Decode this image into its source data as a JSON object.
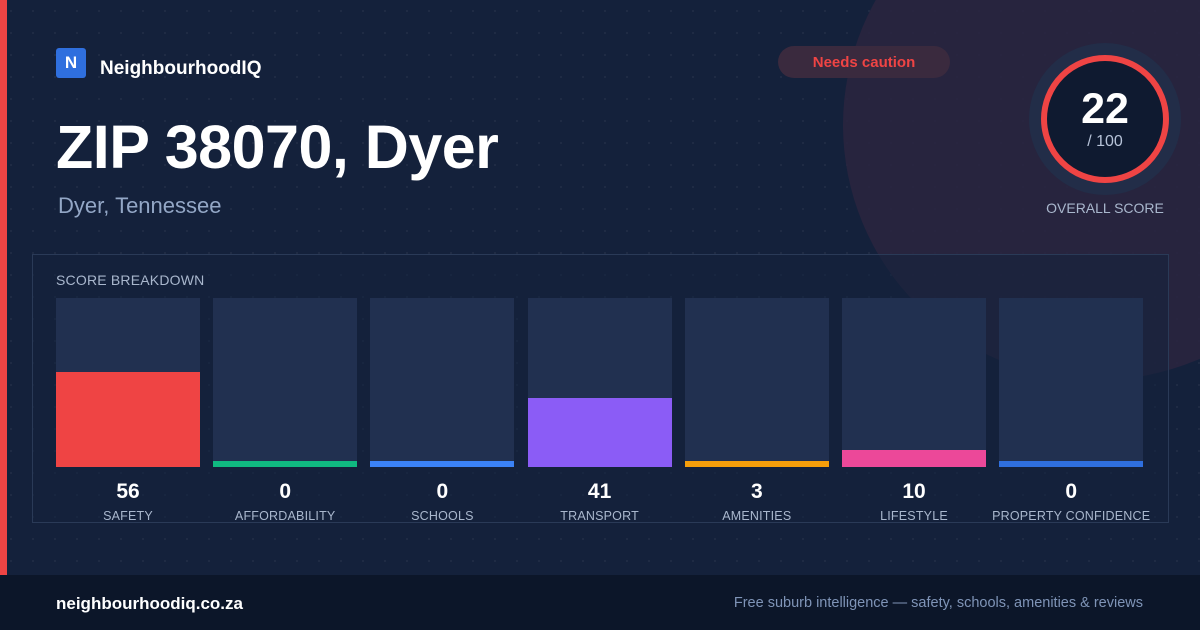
{
  "brand": {
    "logo_letter": "N",
    "name": "NeighbourhoodIQ",
    "logo_color": "#2f6fde"
  },
  "badge": {
    "label": "Needs caution",
    "color": "#ef4444"
  },
  "header": {
    "title": "ZIP 38070, Dyer",
    "subtitle": "Dyer, Tennessee"
  },
  "overall": {
    "score": "22",
    "max": "/ 100",
    "label": "OVERALL SCORE",
    "ring_color": "#ef4444"
  },
  "chart_data": {
    "type": "bar",
    "title": "SCORE BREAKDOWN",
    "ylim": [
      0,
      100
    ],
    "grid": false,
    "categories": [
      "SAFETY",
      "AFFORDABILITY",
      "SCHOOLS",
      "TRANSPORT",
      "AMENITIES",
      "LIFESTYLE",
      "PROPERTY CONFIDENCE"
    ],
    "values": [
      56,
      0,
      0,
      41,
      3,
      10,
      0
    ],
    "colors": [
      "#ef4444",
      "#10b981",
      "#3b82f6",
      "#8b5cf6",
      "#f59e0b",
      "#ec4899",
      "#2f6fde"
    ]
  },
  "footer": {
    "site": "neighbourhoodiq.co.za",
    "tagline": "Free suburb intelligence — safety, schools, amenities & reviews"
  }
}
